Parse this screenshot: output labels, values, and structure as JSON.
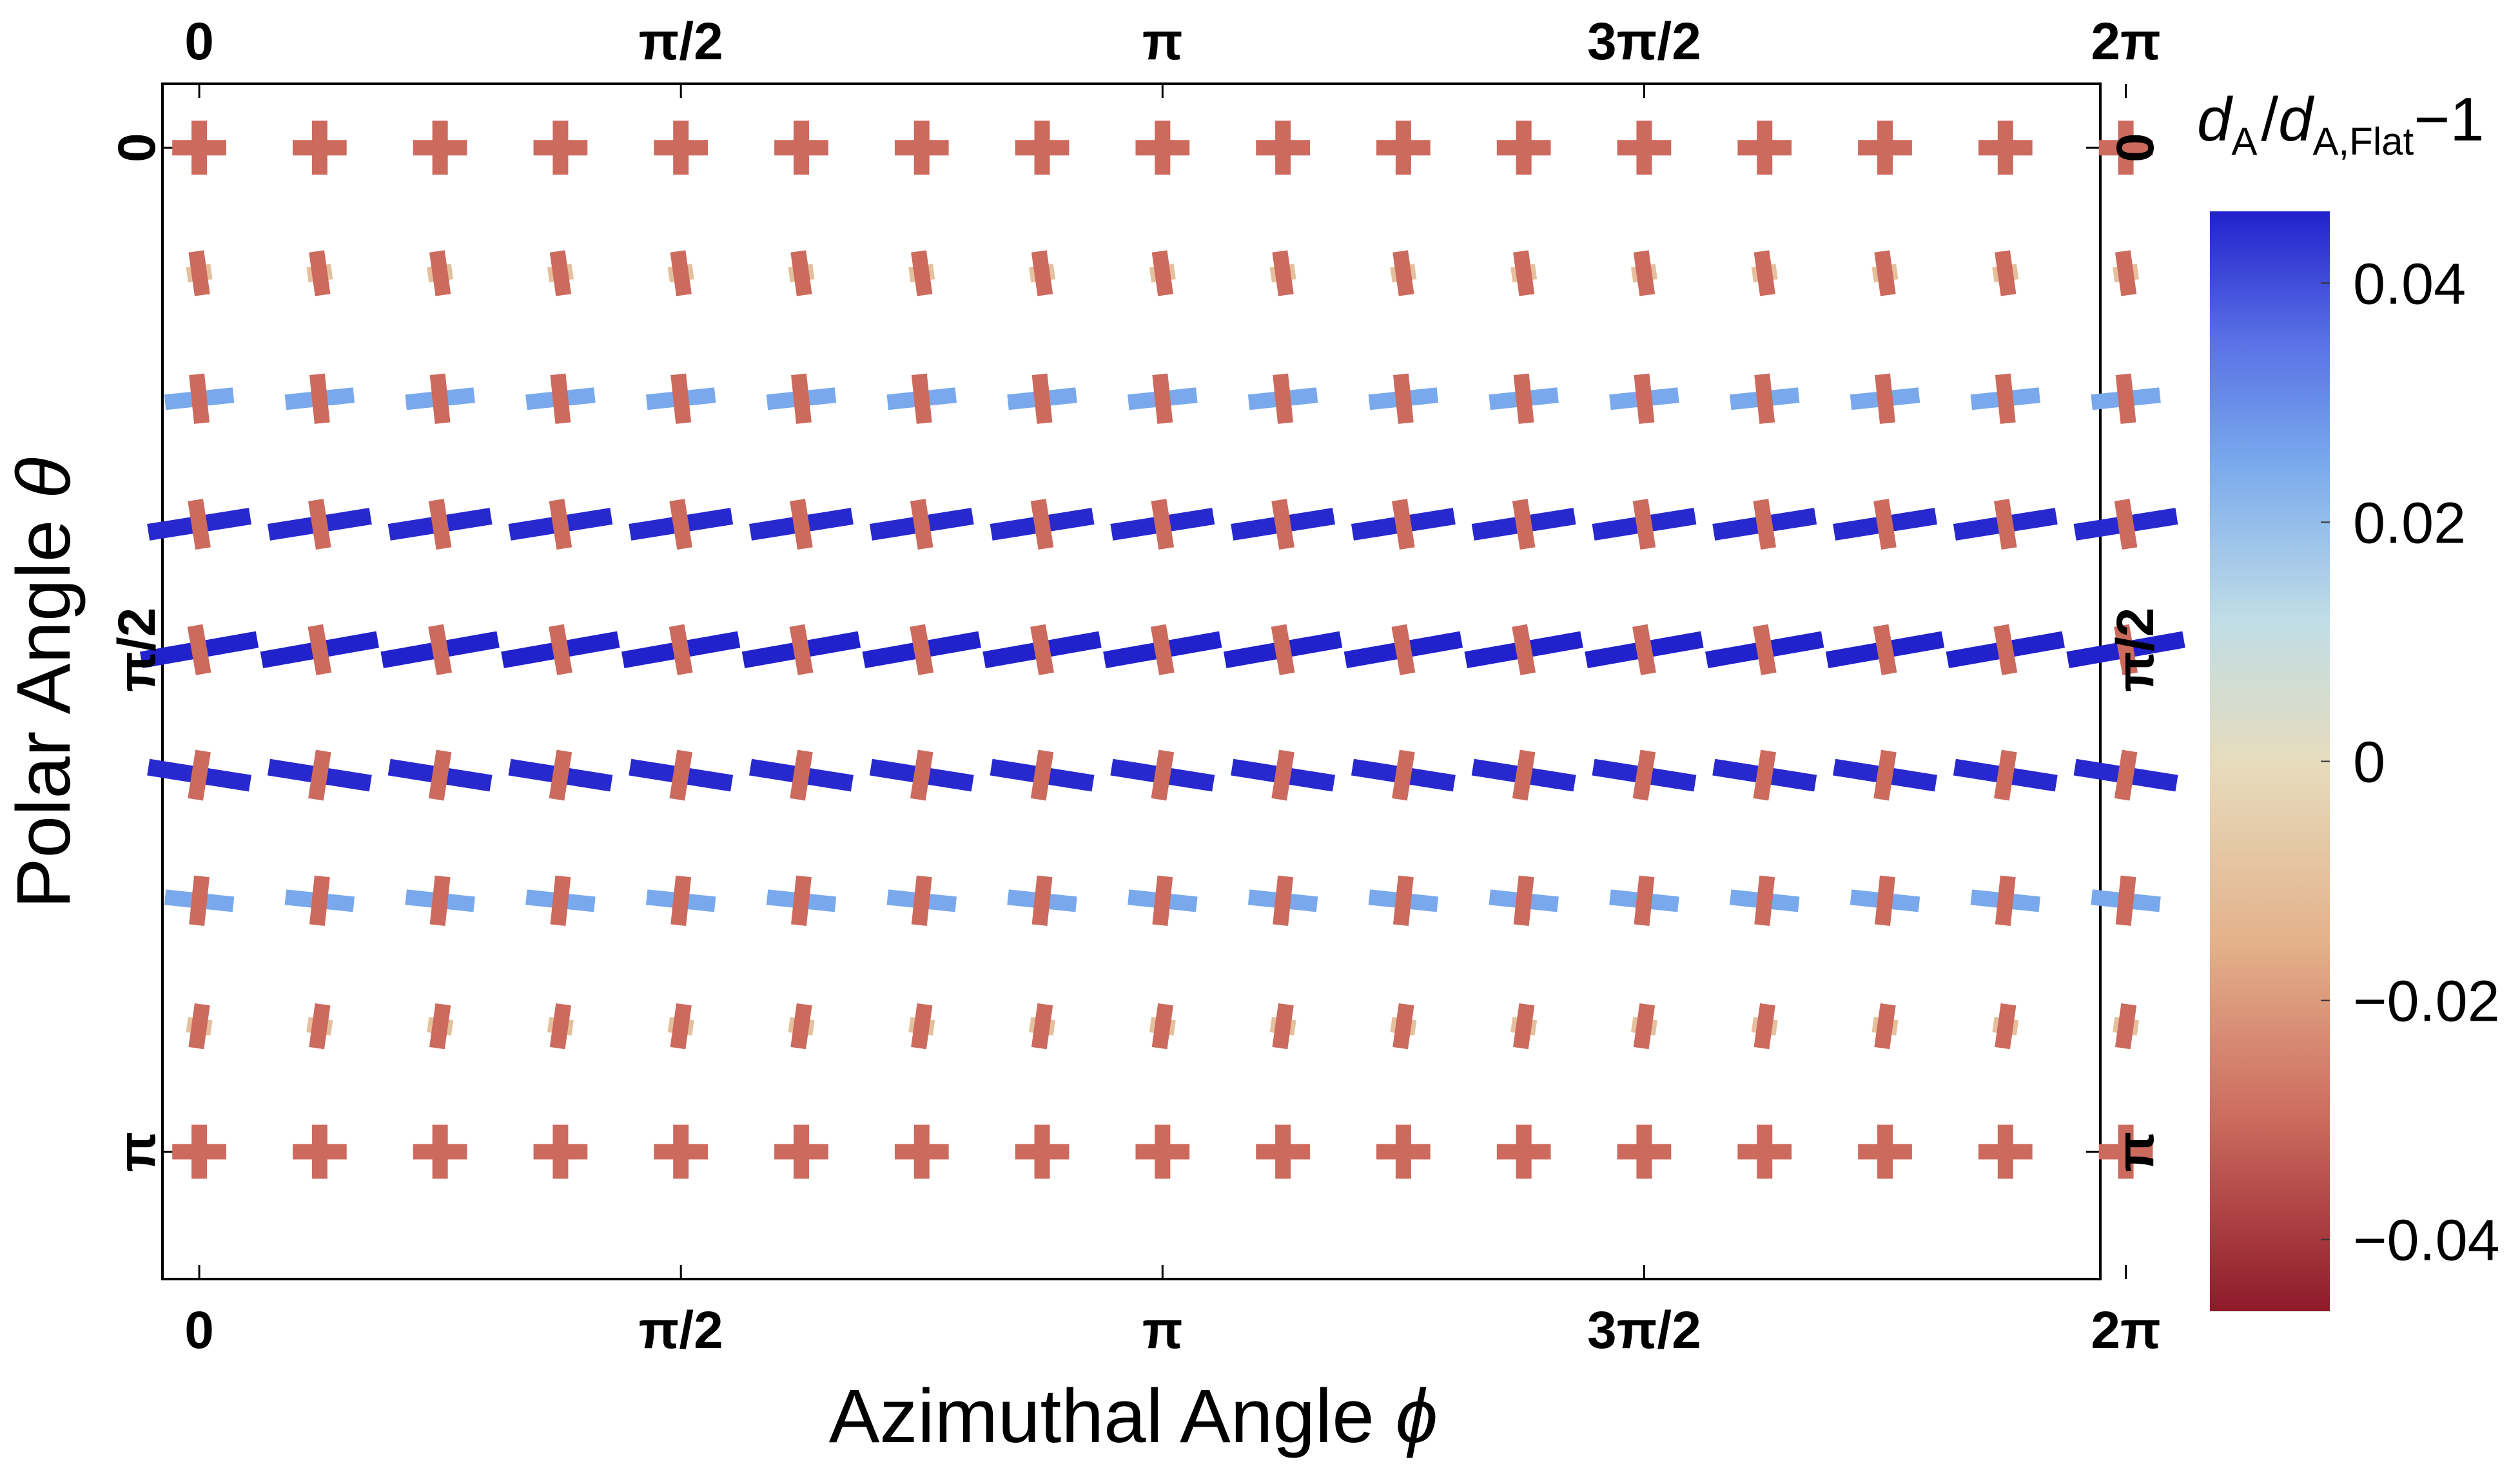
{
  "chart_data": {
    "type": "scatter",
    "title": "",
    "x_axis": {
      "title_text": "Azimuthal Angle ",
      "title_symbol": "ϕ",
      "range": [
        -0.12,
        6.2
      ],
      "tick_values": [
        0,
        1.5708,
        3.1416,
        4.7124,
        6.2832
      ],
      "tick_labels": [
        "0",
        "π/2",
        "π",
        "3π/2",
        "2π"
      ],
      "top_ticks_mirrored": true
    },
    "y_axis": {
      "title_text": "Polar Angle ",
      "title_symbol": "θ",
      "range": [
        -0.2,
        3.54
      ],
      "inverted": true,
      "tick_values": [
        0,
        1.5708,
        3.1416
      ],
      "tick_labels": [
        "0",
        "π/2",
        "π"
      ],
      "right_ticks_mirrored": true
    },
    "phi_values": [
      0,
      0.3927,
      0.7854,
      1.1781,
      1.5708,
      1.9635,
      2.3562,
      2.7489,
      3.1416,
      3.5343,
      3.927,
      4.3197,
      4.7124,
      5.1051,
      5.4978,
      5.8905,
      6.2832
    ],
    "theta_rows": [
      {
        "theta": 0.0,
        "major_value": -0.03,
        "minor_value": -0.03,
        "major_len": 0.55,
        "minor_len": 0.55,
        "major_tilt_deg": 0
      },
      {
        "theta": 0.3927,
        "major_value": -0.03,
        "minor_value": -0.01,
        "major_len": 0.45,
        "minor_len": 0.25,
        "major_tilt_deg": 82
      },
      {
        "theta": 0.7854,
        "major_value": -0.03,
        "minor_value": 0.025,
        "major_len": 0.5,
        "minor_len": 0.7,
        "major_tilt_deg": 84
      },
      {
        "theta": 1.1781,
        "major_value": -0.03,
        "minor_value": 0.045,
        "major_len": 0.5,
        "minor_len": 1.05,
        "major_tilt_deg": 81
      },
      {
        "theta": 1.5708,
        "major_value": -0.03,
        "minor_value": 0.047,
        "major_len": 0.5,
        "minor_len": 1.2,
        "major_tilt_deg": 80
      },
      {
        "theta": 1.9635,
        "major_value": -0.03,
        "minor_value": 0.045,
        "major_len": 0.5,
        "minor_len": 1.05,
        "major_tilt_deg": 99
      },
      {
        "theta": 2.3562,
        "major_value": -0.03,
        "minor_value": 0.025,
        "major_len": 0.5,
        "minor_len": 0.7,
        "major_tilt_deg": 96
      },
      {
        "theta": 2.7489,
        "major_value": -0.03,
        "minor_value": -0.01,
        "major_len": 0.45,
        "minor_len": 0.25,
        "major_tilt_deg": 98
      },
      {
        "theta": 3.1416,
        "major_value": -0.03,
        "minor_value": -0.03,
        "major_len": 0.55,
        "minor_len": 0.55,
        "major_tilt_deg": 0
      }
    ],
    "colorbar": {
      "title_parts": [
        "d",
        "A",
        "/",
        "d",
        "A,Flat",
        "−1"
      ],
      "range": [
        -0.046,
        0.046
      ],
      "tick_values": [
        0.04,
        0.02,
        0,
        -0.02,
        -0.04
      ],
      "tick_labels": [
        "0.04",
        "0.02",
        "0",
        "−0.02",
        "−0.04"
      ],
      "gradient_stops": [
        {
          "value": -0.046,
          "color": "#8e1a2a"
        },
        {
          "value": -0.03,
          "color": "#cc6a5e"
        },
        {
          "value": -0.015,
          "color": "#e4b28c"
        },
        {
          "value": 0.0,
          "color": "#e6dcbd"
        },
        {
          "value": 0.012,
          "color": "#bfdde6"
        },
        {
          "value": 0.025,
          "color": "#79a9ec"
        },
        {
          "value": 0.035,
          "color": "#5a72e6"
        },
        {
          "value": 0.046,
          "color": "#2222cc"
        }
      ]
    }
  }
}
